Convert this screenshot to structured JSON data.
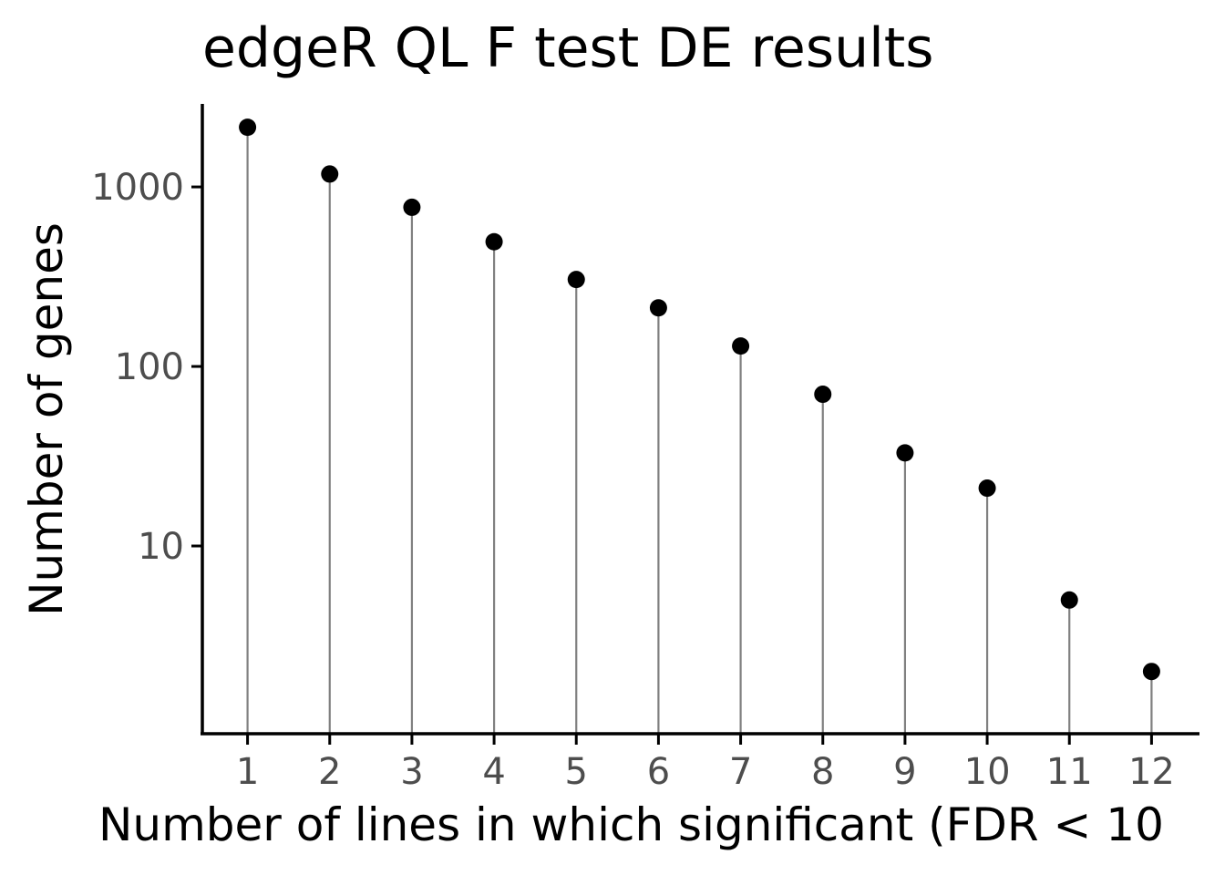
{
  "chart_data": {
    "type": "scatter",
    "title": "edgeR QL F test DE results",
    "xlabel": "Number of lines in which significant (FDR < 10",
    "ylabel": "Number of genes",
    "x": [
      1,
      2,
      3,
      4,
      5,
      6,
      7,
      8,
      9,
      10,
      11,
      12
    ],
    "values": [
      2150,
      1180,
      770,
      495,
      305,
      212,
      130,
      70,
      33,
      21,
      5,
      2
    ],
    "xlim": [
      0.45,
      12.55
    ],
    "ylim": [
      0.9,
      2900
    ],
    "yscale": "log10",
    "xticks": [
      "1",
      "2",
      "3",
      "4",
      "5",
      "6",
      "7",
      "8",
      "9",
      "10",
      "11",
      "12"
    ],
    "yticks": [
      {
        "value": 10,
        "label": "10"
      },
      {
        "value": 100,
        "label": "100"
      },
      {
        "value": 1000,
        "label": "1000"
      }
    ],
    "grid": false,
    "legend": "none",
    "marker_color": "#000000",
    "stem_color": "#808080"
  }
}
